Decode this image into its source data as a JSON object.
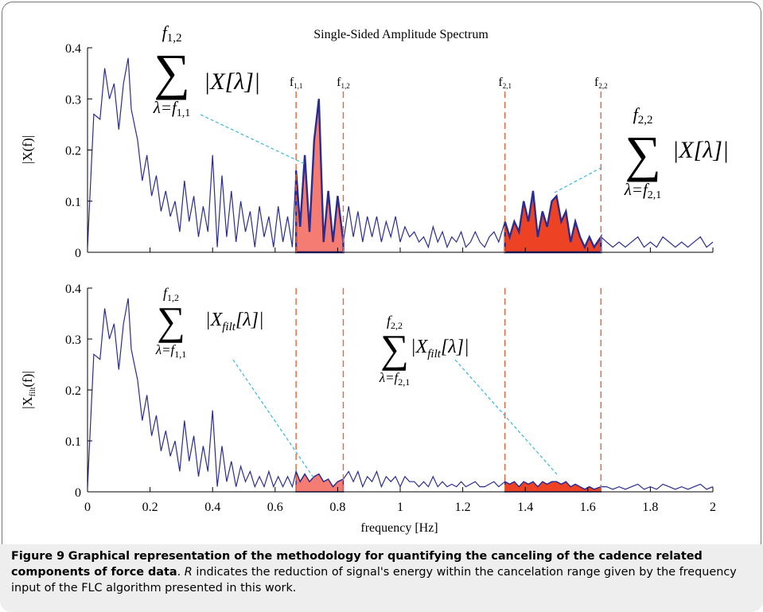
{
  "figure": {
    "caption_label": "Figure 9",
    "caption_title": "Graphical representation of the methodology for quantifying the canceling of the cadence related components of force data",
    "caption_r": "R",
    "caption_body": " indicates the reduction of signal's energy within the cancelation range given by the frequency input of the FLC algorithm presented in this work."
  },
  "colors": {
    "line": "#2a2d8f",
    "axis": "#000000",
    "dashed_limit": "#e8643c",
    "leader": "#37b7e0",
    "fill_band1": "#f47c72",
    "fill_band2": "#ee4225"
  },
  "chart_data": [
    {
      "type": "area",
      "title": "Single-Sided Amplitude Spectrum",
      "xlabel": "",
      "ylabel": "|X(f)|",
      "xlim": [
        0,
        2
      ],
      "ylim": [
        0,
        0.4
      ],
      "yticks": [
        "0",
        "0.1",
        "0.2",
        "0.3",
        "0.4"
      ],
      "band_labels": {
        "f11": {
          "base": "f",
          "sub": "1,1",
          "x": 0.667
        },
        "f12": {
          "base": "f",
          "sub": "1,2",
          "x": 0.818
        },
        "f21": {
          "base": "f",
          "sub": "2,1",
          "x": 1.335
        },
        "f22": {
          "base": "f",
          "sub": "2,2",
          "x": 1.642
        }
      },
      "annotations": {
        "sum1": {
          "upper": "f1,2",
          "symbol": "∑",
          "lower": "λ=f1,1",
          "term": "|X[λ]|"
        },
        "sum2": {
          "upper": "f2,2",
          "symbol": "∑",
          "lower": "λ=f2,1",
          "term": "|X[λ]|"
        }
      },
      "series": [
        {
          "x": [
            0,
            0.02,
            0.04,
            0.055,
            0.07,
            0.085,
            0.1,
            0.115,
            0.13,
            0.14,
            0.15,
            0.16,
            0.175,
            0.19,
            0.205,
            0.22,
            0.235,
            0.25,
            0.265,
            0.28,
            0.295,
            0.31,
            0.325,
            0.34,
            0.355,
            0.37,
            0.385,
            0.4,
            0.415,
            0.43,
            0.445,
            0.46,
            0.475,
            0.49,
            0.505,
            0.52,
            0.535,
            0.55,
            0.565,
            0.58,
            0.595,
            0.61,
            0.625,
            0.64,
            0.655,
            0.667,
            0.68,
            0.695,
            0.71,
            0.725,
            0.74,
            0.755,
            0.77,
            0.785,
            0.8,
            0.818,
            0.835,
            0.85,
            0.865,
            0.88,
            0.895,
            0.91,
            0.925,
            0.94,
            0.955,
            0.97,
            0.985,
            1.0,
            1.015,
            1.03,
            1.045,
            1.06,
            1.075,
            1.09,
            1.105,
            1.12,
            1.135,
            1.15,
            1.165,
            1.18,
            1.195,
            1.21,
            1.225,
            1.24,
            1.255,
            1.27,
            1.285,
            1.3,
            1.315,
            1.335,
            1.35,
            1.365,
            1.38,
            1.395,
            1.41,
            1.425,
            1.44,
            1.455,
            1.47,
            1.485,
            1.5,
            1.515,
            1.53,
            1.545,
            1.56,
            1.575,
            1.59,
            1.605,
            1.62,
            1.642,
            1.66,
            1.68,
            1.7,
            1.72,
            1.74,
            1.76,
            1.78,
            1.8,
            1.82,
            1.84,
            1.86,
            1.88,
            1.9,
            1.92,
            1.94,
            1.96,
            1.98,
            2.0
          ],
          "y": [
            0.01,
            0.27,
            0.26,
            0.36,
            0.3,
            0.33,
            0.24,
            0.33,
            0.38,
            0.28,
            0.25,
            0.22,
            0.14,
            0.19,
            0.11,
            0.15,
            0.08,
            0.12,
            0.07,
            0.1,
            0.04,
            0.14,
            0.06,
            0.11,
            0.03,
            0.09,
            0.04,
            0.19,
            0.01,
            0.15,
            0.03,
            0.12,
            0.02,
            0.1,
            0.04,
            0.08,
            0.01,
            0.09,
            0.03,
            0.07,
            0.01,
            0.09,
            0.02,
            0.07,
            0.01,
            0.16,
            0.05,
            0.19,
            0.04,
            0.22,
            0.3,
            0.02,
            0.12,
            0.02,
            0.11,
            0.02,
            0.09,
            0.03,
            0.08,
            0.02,
            0.07,
            0.03,
            0.07,
            0.02,
            0.06,
            0.03,
            0.07,
            0.02,
            0.05,
            0.03,
            0.04,
            0.02,
            0.03,
            0.01,
            0.05,
            0.02,
            0.04,
            0.01,
            0.03,
            0.02,
            0.04,
            0.01,
            0.02,
            0.04,
            0.02,
            0.01,
            0.03,
            0.04,
            0.02,
            0.06,
            0.03,
            0.06,
            0.04,
            0.1,
            0.06,
            0.12,
            0.03,
            0.08,
            0.05,
            0.1,
            0.11,
            0.06,
            0.08,
            0.02,
            0.06,
            0.03,
            0.01,
            0.03,
            0.01,
            0.03,
            0.02,
            0.01,
            0.02,
            0.01,
            0.02,
            0.03,
            0.01,
            0.02,
            0.01,
            0.03,
            0.02,
            0.01,
            0.02,
            0.01,
            0.02,
            0.03,
            0.01,
            0.02
          ]
        }
      ],
      "shaded_ranges": [
        [
          0.667,
          0.818
        ],
        [
          1.335,
          1.642
        ]
      ]
    },
    {
      "type": "area",
      "title": "",
      "xlabel": "frequency [Hz]",
      "ylabel": "|Xfilt(f)|",
      "xlim": [
        0,
        2
      ],
      "ylim": [
        0,
        0.4
      ],
      "xticks": [
        "0",
        "0.2",
        "0.4",
        "0.6",
        "0.8",
        "1",
        "1.2",
        "1.4",
        "1.6",
        "1.8",
        "2"
      ],
      "yticks": [
        "0",
        "0.1",
        "0.2",
        "0.3",
        "0.4"
      ],
      "annotations": {
        "sum1": {
          "upper": "f1,2",
          "symbol": "∑",
          "lower": "λ=f1,1",
          "term": "|Xfilt[λ]|"
        },
        "sum2": {
          "upper": "f2,2",
          "symbol": "∑",
          "lower": "λ=f2,1",
          "term": "|Xfilt[λ]|"
        }
      },
      "series": [
        {
          "x": [
            0,
            0.02,
            0.04,
            0.055,
            0.07,
            0.085,
            0.1,
            0.115,
            0.13,
            0.14,
            0.15,
            0.16,
            0.175,
            0.19,
            0.205,
            0.22,
            0.235,
            0.25,
            0.265,
            0.28,
            0.295,
            0.31,
            0.325,
            0.34,
            0.355,
            0.37,
            0.385,
            0.4,
            0.415,
            0.43,
            0.445,
            0.46,
            0.475,
            0.49,
            0.505,
            0.52,
            0.535,
            0.55,
            0.565,
            0.58,
            0.595,
            0.61,
            0.625,
            0.64,
            0.655,
            0.667,
            0.68,
            0.695,
            0.71,
            0.725,
            0.74,
            0.755,
            0.77,
            0.785,
            0.8,
            0.818,
            0.835,
            0.85,
            0.865,
            0.88,
            0.895,
            0.91,
            0.925,
            0.94,
            0.955,
            0.97,
            0.985,
            1.0,
            1.015,
            1.03,
            1.045,
            1.06,
            1.075,
            1.09,
            1.105,
            1.12,
            1.135,
            1.15,
            1.165,
            1.18,
            1.195,
            1.21,
            1.225,
            1.24,
            1.255,
            1.27,
            1.285,
            1.3,
            1.315,
            1.335,
            1.35,
            1.365,
            1.38,
            1.395,
            1.41,
            1.425,
            1.44,
            1.455,
            1.47,
            1.485,
            1.5,
            1.515,
            1.53,
            1.545,
            1.56,
            1.575,
            1.59,
            1.605,
            1.62,
            1.642,
            1.66,
            1.68,
            1.7,
            1.72,
            1.74,
            1.76,
            1.78,
            1.8,
            1.82,
            1.84,
            1.86,
            1.88,
            1.9,
            1.92,
            1.94,
            1.96,
            1.98,
            2.0
          ],
          "y": [
            0.01,
            0.27,
            0.26,
            0.36,
            0.3,
            0.33,
            0.24,
            0.33,
            0.38,
            0.28,
            0.25,
            0.22,
            0.14,
            0.19,
            0.11,
            0.15,
            0.08,
            0.12,
            0.07,
            0.1,
            0.04,
            0.14,
            0.06,
            0.11,
            0.03,
            0.09,
            0.04,
            0.16,
            0.01,
            0.09,
            0.02,
            0.06,
            0.01,
            0.05,
            0.02,
            0.04,
            0.01,
            0.03,
            0.01,
            0.04,
            0.01,
            0.03,
            0.01,
            0.03,
            0.01,
            0.04,
            0.02,
            0.035,
            0.02,
            0.03,
            0.035,
            0.02,
            0.025,
            0.01,
            0.02,
            0.025,
            0.04,
            0.02,
            0.04,
            0.01,
            0.03,
            0.02,
            0.04,
            0.01,
            0.03,
            0.02,
            0.03,
            0.01,
            0.03,
            0.02,
            0.02,
            0.01,
            0.02,
            0.01,
            0.03,
            0.01,
            0.02,
            0.01,
            0.015,
            0.01,
            0.02,
            0.01,
            0.015,
            0.02,
            0.01,
            0.01,
            0.015,
            0.02,
            0.01,
            0.02,
            0.015,
            0.02,
            0.01,
            0.02,
            0.015,
            0.02,
            0.01,
            0.02,
            0.015,
            0.02,
            0.02,
            0.015,
            0.02,
            0.01,
            0.015,
            0.01,
            0.005,
            0.01,
            0.005,
            0.01,
            0.01,
            0.005,
            0.01,
            0.005,
            0.01,
            0.015,
            0.005,
            0.01,
            0.005,
            0.015,
            0.01,
            0.005,
            0.01,
            0.005,
            0.01,
            0.015,
            0.005,
            0.01
          ]
        }
      ],
      "shaded_ranges": [
        [
          0.667,
          0.818
        ],
        [
          1.335,
          1.642
        ]
      ]
    }
  ]
}
